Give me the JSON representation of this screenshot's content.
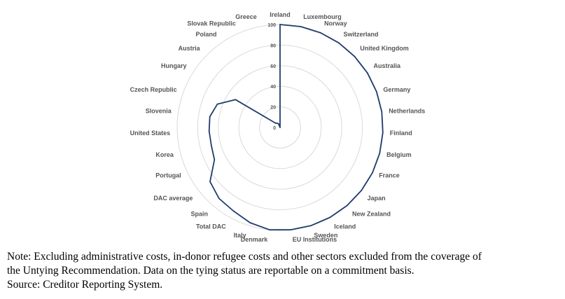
{
  "chart_data": {
    "type": "radar",
    "categories": [
      "Ireland",
      "Luxembourg",
      "Norway",
      "Switzerland",
      "United Kingdom",
      "Australia",
      "Germany",
      "Netherlands",
      "Finland",
      "Belgium",
      "France",
      "Japan",
      "New Zealand",
      "Iceland",
      "Sweden",
      "EU Institutions",
      "Denmark",
      "Italy",
      "Total DAC",
      "Spain",
      "DAC average",
      "Portugal",
      "Korea",
      "United States",
      "Slovenia",
      "Czech Republic",
      "Hungary",
      "Austria",
      "Poland",
      "Slovak Republic",
      "Greece"
    ],
    "values": [
      100,
      100,
      100,
      100,
      100,
      100,
      100,
      100,
      100,
      100,
      100,
      100,
      100,
      100,
      100,
      100,
      100,
      97,
      93,
      91,
      86,
      71,
      69,
      69,
      69,
      65,
      51,
      6,
      5,
      4,
      0
    ],
    "rticks": [
      0,
      20,
      40,
      60,
      80,
      100
    ],
    "rlim": [
      0,
      100
    ],
    "grid": true,
    "series_color": "#1f3d6e",
    "grid_color": "#d9d9d9"
  },
  "note": {
    "line1": "Note: Excluding administrative costs, in-donor refugee costs and other sectors excluded from the coverage of",
    "line2": "the Untying Recommendation. Data on the tying status are reportable on a commitment basis.",
    "line3": "Source: Creditor Reporting System."
  }
}
